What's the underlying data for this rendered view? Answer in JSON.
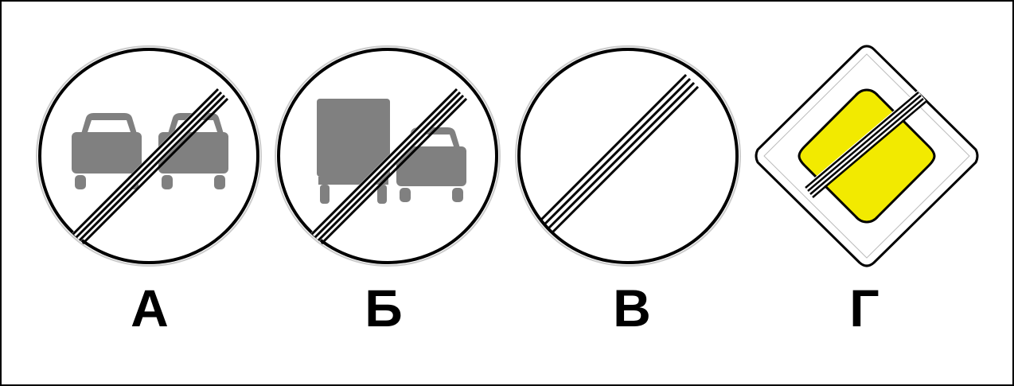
{
  "options": [
    {
      "letter": "А",
      "icon": "end-of-no-overtaking-sign-icon"
    },
    {
      "letter": "Б",
      "icon": "end-of-no-overtaking-trucks-sign-icon"
    },
    {
      "letter": "В",
      "icon": "end-of-all-restrictions-sign-icon"
    },
    {
      "letter": "Г",
      "icon": "end-of-priority-road-sign-icon"
    }
  ],
  "colors": {
    "border": "#000000",
    "pictogram": "#808080",
    "priority_yellow": "#f2ea00",
    "background": "#ffffff"
  }
}
